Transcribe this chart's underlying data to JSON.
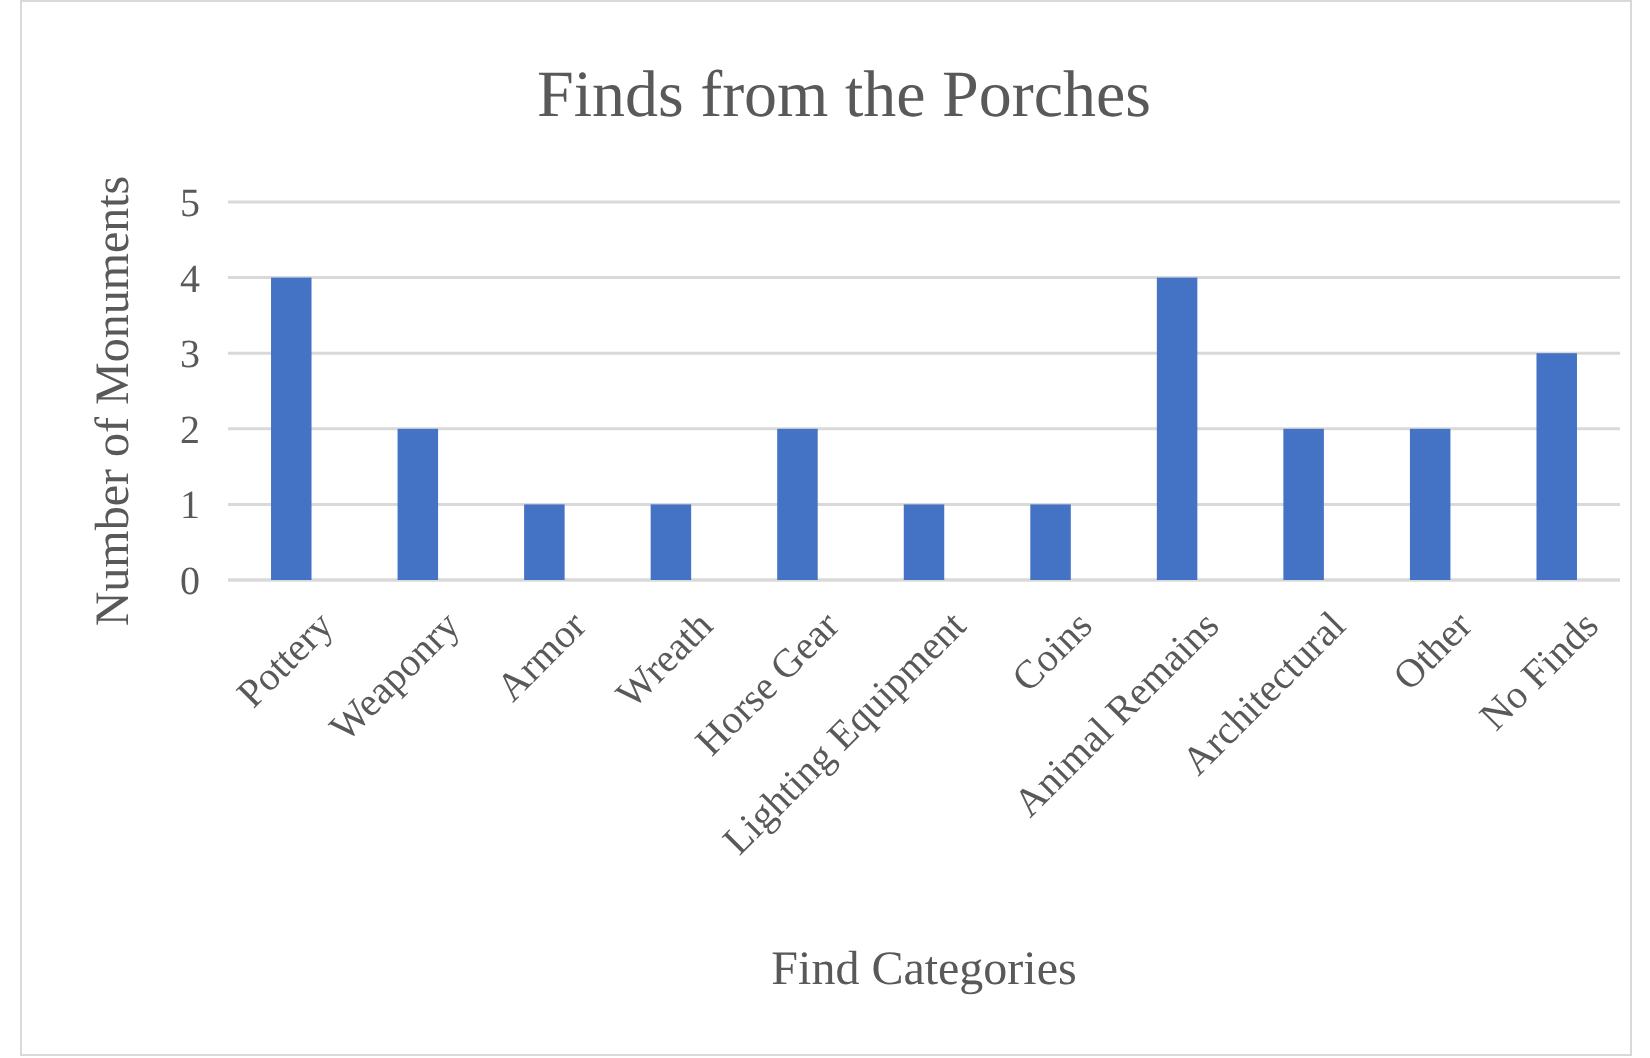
{
  "chart_data": {
    "type": "bar",
    "title": "Finds from the Porches",
    "xlabel": "Find Categories",
    "ylabel": "Number of Monuments",
    "categories": [
      "Pottery",
      "Weaponry",
      "Armor",
      "Wreath",
      "Horse Gear",
      "Lighting Equipment",
      "Coins",
      "Animal Remains",
      "Architectural",
      "Other",
      "No Finds"
    ],
    "values": [
      4,
      2,
      1,
      1,
      2,
      1,
      1,
      4,
      2,
      2,
      3
    ],
    "color": "#4472c4",
    "ylim": [
      0,
      5
    ],
    "yticks": [
      0,
      1,
      2,
      3,
      4,
      5
    ],
    "grid": "y"
  }
}
